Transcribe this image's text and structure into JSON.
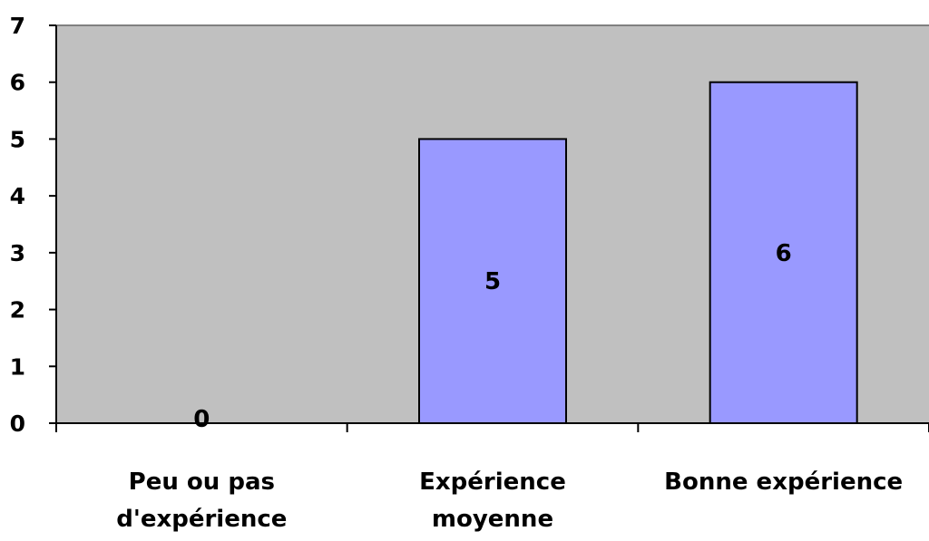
{
  "chart_data": {
    "type": "bar",
    "categories": [
      [
        "Peu ou pas",
        "d'expérience"
      ],
      [
        "Expérience",
        "moyenne"
      ],
      [
        "Bonne expérience"
      ]
    ],
    "values": [
      0,
      5,
      6
    ],
    "data_labels": [
      "0",
      "5",
      "6"
    ],
    "y_ticks": [
      "0",
      "1",
      "2",
      "3",
      "4",
      "5",
      "6",
      "7"
    ],
    "ylim": [
      0,
      7
    ],
    "grid": false,
    "legend": "none",
    "title": "",
    "xlabel": "",
    "ylabel": "",
    "colors": {
      "plot_background": "#c0c0c0",
      "bar_fill": "#9999ff",
      "bar_stroke": "#000000",
      "axis": "#000000",
      "plot_border": "#808080"
    }
  }
}
